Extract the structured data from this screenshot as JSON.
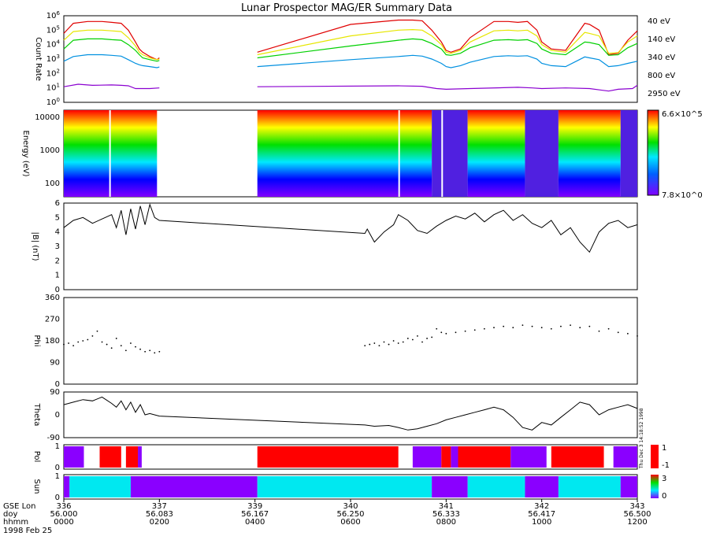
{
  "title": "Lunar Prospector MAG/ER Summary Data",
  "colors": {
    "e40": "#e00000",
    "e140": "#e6e600",
    "e340": "#00d000",
    "e800": "#0090e0",
    "e2950": "#8a00d0",
    "pol_pos": "#ff0000",
    "pol_neg": "#8a00ff",
    "sun_lit": "#00e8f0",
    "sun_dark": "#8a00ff"
  },
  "chart_data": [
    {
      "type": "line",
      "panel": "count-rate",
      "ylabel": "Count Rate",
      "yscale": "log",
      "ylim": [
        1,
        1000000
      ],
      "yticks": [
        "10^0",
        "10^1",
        "10^2",
        "10^3",
        "10^4",
        "10^5",
        "10^6"
      ],
      "xlim": [
        0,
        12
      ],
      "series": [
        {
          "name": "40 eV",
          "color_key": "e40",
          "x": [
            0,
            0.2,
            0.5,
            0.8,
            1.0,
            1.2,
            1.35,
            1.5,
            1.58,
            1.65,
            1.8,
            1.95,
            2.0,
            4.0,
            4.05,
            6.0,
            7.0,
            7.3,
            7.5,
            7.7,
            7.9,
            8.0,
            8.1,
            8.3,
            8.5,
            9.0,
            9.3,
            9.5,
            9.7,
            9.9,
            10.0,
            10.2,
            10.5,
            10.9,
            11.0,
            11.2,
            11.4,
            11.6,
            11.8,
            12.0
          ],
          "y": [
            60000,
            300000,
            400000,
            400000,
            350000,
            300000,
            100000,
            15000,
            5000,
            3000,
            1500,
            900,
            1200,
            null,
            3000,
            250000,
            500000,
            500000,
            450000,
            100000,
            15000,
            4000,
            3000,
            5000,
            30000,
            400000,
            400000,
            350000,
            400000,
            100000,
            15000,
            5000,
            4000,
            300000,
            250000,
            100000,
            2000,
            2500,
            20000,
            90000
          ]
        },
        {
          "name": "140 eV",
          "color_key": "e140",
          "x": [
            0,
            0.2,
            0.5,
            0.8,
            1.0,
            1.2,
            1.35,
            1.5,
            1.58,
            1.65,
            1.8,
            1.95,
            2.0,
            4.0,
            4.05,
            6.0,
            7.0,
            7.3,
            7.5,
            7.7,
            7.9,
            8.0,
            8.1,
            8.3,
            8.5,
            9.0,
            9.3,
            9.5,
            9.7,
            9.9,
            10.0,
            10.2,
            10.5,
            10.9,
            11.0,
            11.2,
            11.4,
            11.6,
            11.8,
            12.0
          ],
          "y": [
            20000,
            80000,
            100000,
            100000,
            90000,
            80000,
            30000,
            8000,
            3000,
            2000,
            1200,
            900,
            1000,
            null,
            2000,
            40000,
            100000,
            110000,
            100000,
            40000,
            10000,
            3000,
            2500,
            4000,
            15000,
            90000,
            100000,
            90000,
            100000,
            40000,
            10000,
            4000,
            3000,
            70000,
            60000,
            40000,
            2500,
            2800,
            15000,
            40000
          ]
        },
        {
          "name": "340 eV",
          "color_key": "e340",
          "x": [
            0,
            0.2,
            0.5,
            0.8,
            1.0,
            1.2,
            1.35,
            1.5,
            1.58,
            1.65,
            1.8,
            1.95,
            2.0,
            4.0,
            4.05,
            6.0,
            7.0,
            7.3,
            7.5,
            7.7,
            7.9,
            8.0,
            8.1,
            8.3,
            8.5,
            9.0,
            9.3,
            9.5,
            9.7,
            9.9,
            10.0,
            10.2,
            10.5,
            10.9,
            11.0,
            11.2,
            11.4,
            11.6,
            11.8,
            12.0
          ],
          "y": [
            5000,
            20000,
            25000,
            25000,
            22000,
            20000,
            10000,
            4000,
            2000,
            1200,
            900,
            700,
            800,
            null,
            1200,
            8000,
            20000,
            25000,
            22000,
            12000,
            5000,
            2000,
            1800,
            2500,
            6000,
            20000,
            22000,
            20000,
            22000,
            12000,
            5000,
            2500,
            2000,
            15000,
            14000,
            10000,
            1800,
            2000,
            6000,
            12000
          ]
        },
        {
          "name": "800 eV",
          "color_key": "e800",
          "x": [
            0,
            0.2,
            0.5,
            0.8,
            1.0,
            1.2,
            1.35,
            1.5,
            1.58,
            1.65,
            1.8,
            1.95,
            2.0,
            4.0,
            4.05,
            6.0,
            7.0,
            7.3,
            7.5,
            7.7,
            7.9,
            8.0,
            8.1,
            8.3,
            8.5,
            9.0,
            9.3,
            9.5,
            9.7,
            9.9,
            10.0,
            10.2,
            10.5,
            10.9,
            11.0,
            11.2,
            11.4,
            11.6,
            11.8,
            12.0
          ],
          "y": [
            700,
            1500,
            2000,
            2000,
            1800,
            1600,
            900,
            500,
            400,
            350,
            300,
            250,
            280,
            null,
            300,
            900,
            1500,
            1800,
            1600,
            1000,
            500,
            300,
            250,
            350,
            600,
            1500,
            1700,
            1600,
            1700,
            1000,
            500,
            350,
            300,
            1400,
            1200,
            900,
            300,
            350,
            500,
            700
          ]
        },
        {
          "name": "2950 eV",
          "color_key": "e2950",
          "x": [
            0,
            0.3,
            0.6,
            1.0,
            1.2,
            1.35,
            1.5,
            1.8,
            2.0,
            4.0,
            4.05,
            7.0,
            7.5,
            7.8,
            8.0,
            8.5,
            9.5,
            9.8,
            10.0,
            10.5,
            11.0,
            11.4,
            11.6,
            11.9,
            12.0
          ],
          "y": [
            12,
            18,
            15,
            16,
            15,
            14,
            9,
            9,
            10,
            null,
            12,
            14,
            13,
            9,
            8,
            9,
            11,
            10,
            9,
            10,
            9,
            6,
            8,
            9,
            15
          ]
        }
      ]
    },
    {
      "type": "heatmap",
      "panel": "energy-spectrogram",
      "ylabel": "Energy (eV)",
      "yticks": [
        "100",
        "1000",
        "10000"
      ],
      "colorbar_max": "6.6×10^5",
      "colorbar_min": "7.8×10^0"
    },
    {
      "type": "line",
      "panel": "b-magnitude",
      "ylabel": "|B| (nT)",
      "ylim": [
        0,
        6
      ],
      "yticks": [
        "0",
        "1",
        "2",
        "3",
        "4",
        "5",
        "6"
      ],
      "x": [
        0,
        0.2,
        0.4,
        0.6,
        0.8,
        1.0,
        1.1,
        1.2,
        1.3,
        1.4,
        1.5,
        1.6,
        1.7,
        1.8,
        1.9,
        2.0,
        6.3,
        6.35,
        6.5,
        6.7,
        6.9,
        7.0,
        7.2,
        7.4,
        7.6,
        7.8,
        8.0,
        8.2,
        8.4,
        8.6,
        8.8,
        9.0,
        9.2,
        9.4,
        9.6,
        9.8,
        10.0,
        10.2,
        10.4,
        10.6,
        10.8,
        11.0,
        11.2,
        11.4,
        11.6,
        11.8,
        12.0
      ],
      "y": [
        4.3,
        4.8,
        5.0,
        4.6,
        4.9,
        5.2,
        4.3,
        5.5,
        3.8,
        5.6,
        4.2,
        5.8,
        4.5,
        5.9,
        5.0,
        4.8,
        3.9,
        4.2,
        3.3,
        4.0,
        4.5,
        5.2,
        4.8,
        4.1,
        3.9,
        4.4,
        4.8,
        5.1,
        4.9,
        5.3,
        4.7,
        5.2,
        5.5,
        4.8,
        5.2,
        4.6,
        4.3,
        4.8,
        3.8,
        4.3,
        3.3,
        2.6,
        4.0,
        4.6,
        4.8,
        4.3,
        4.5
      ]
    },
    {
      "type": "scatter",
      "panel": "phi",
      "ylabel": "Phi",
      "ylim": [
        0,
        360
      ],
      "yticks": [
        "0",
        "90",
        "180",
        "270",
        "360"
      ],
      "x": [
        0,
        0.1,
        0.2,
        0.3,
        0.4,
        0.5,
        0.6,
        0.7,
        0.8,
        0.9,
        1.0,
        1.1,
        1.2,
        1.3,
        1.4,
        1.5,
        1.6,
        1.7,
        1.8,
        1.9,
        2.0,
        6.3,
        6.4,
        6.5,
        6.6,
        6.7,
        6.8,
        6.9,
        7.0,
        7.1,
        7.2,
        7.3,
        7.4,
        7.5,
        7.6,
        7.7,
        7.8,
        7.9,
        8.0,
        8.2,
        8.4,
        8.6,
        8.8,
        9.0,
        9.2,
        9.4,
        9.6,
        9.8,
        10.0,
        10.2,
        10.4,
        10.6,
        10.8,
        11.0,
        11.2,
        11.4,
        11.6,
        11.8,
        12.0
      ],
      "y": [
        165,
        170,
        160,
        175,
        180,
        185,
        200,
        220,
        175,
        165,
        150,
        190,
        160,
        140,
        170,
        155,
        145,
        135,
        140,
        130,
        135,
        160,
        165,
        170,
        160,
        175,
        165,
        180,
        170,
        175,
        190,
        185,
        200,
        175,
        190,
        195,
        230,
        215,
        210,
        215,
        220,
        225,
        230,
        235,
        240,
        235,
        245,
        240,
        235,
        230,
        240,
        245,
        235,
        240,
        220,
        230,
        215,
        210,
        200
      ]
    },
    {
      "type": "line",
      "panel": "theta",
      "ylabel": "Theta",
      "ylim": [
        -90,
        90
      ],
      "yticks": [
        "-90",
        "0",
        "90"
      ],
      "x": [
        0,
        0.2,
        0.4,
        0.6,
        0.8,
        1.0,
        1.1,
        1.2,
        1.3,
        1.4,
        1.5,
        1.6,
        1.7,
        1.8,
        2.0,
        6.3,
        6.5,
        6.8,
        7.0,
        7.2,
        7.4,
        7.6,
        7.8,
        8.0,
        8.2,
        8.4,
        8.6,
        8.8,
        9.0,
        9.2,
        9.4,
        9.6,
        9.8,
        10.0,
        10.2,
        10.4,
        10.6,
        10.8,
        11.0,
        11.2,
        11.4,
        11.6,
        11.8,
        12.0
      ],
      "y": [
        40,
        50,
        60,
        55,
        70,
        45,
        30,
        55,
        20,
        50,
        10,
        40,
        0,
        5,
        -5,
        -40,
        -45,
        -42,
        -50,
        -60,
        -55,
        -45,
        -35,
        -20,
        -10,
        0,
        10,
        20,
        30,
        20,
        -10,
        -50,
        -60,
        -30,
        -40,
        -10,
        20,
        50,
        40,
        0,
        20,
        30,
        40,
        25
      ]
    },
    {
      "type": "table",
      "panel": "pol",
      "ylabel": "Pol",
      "yticks": [
        "0",
        "1"
      ],
      "colorbar": [
        "1",
        "-1"
      ],
      "segments": [
        {
          "start": 0.0,
          "end": 0.42,
          "value": -1
        },
        {
          "start": 0.42,
          "end": 0.75,
          "value": null
        },
        {
          "start": 0.75,
          "end": 1.2,
          "value": 1
        },
        {
          "start": 1.2,
          "end": 1.3,
          "value": null
        },
        {
          "start": 1.3,
          "end": 1.55,
          "value": 1
        },
        {
          "start": 1.55,
          "end": 1.63,
          "value": -1
        },
        {
          "start": 1.63,
          "end": 4.05,
          "value": null
        },
        {
          "start": 4.05,
          "end": 7.0,
          "value": 1
        },
        {
          "start": 7.0,
          "end": 7.3,
          "value": null
        },
        {
          "start": 7.3,
          "end": 7.9,
          "value": -1
        },
        {
          "start": 7.9,
          "end": 8.1,
          "value": 1
        },
        {
          "start": 8.1,
          "end": 8.25,
          "value": -1
        },
        {
          "start": 8.25,
          "end": 9.35,
          "value": 1
        },
        {
          "start": 9.35,
          "end": 10.1,
          "value": -1
        },
        {
          "start": 10.1,
          "end": 10.2,
          "value": null
        },
        {
          "start": 10.2,
          "end": 11.3,
          "value": 1
        },
        {
          "start": 11.3,
          "end": 11.5,
          "value": null
        },
        {
          "start": 11.5,
          "end": 12.0,
          "value": -1
        }
      ]
    },
    {
      "type": "table",
      "panel": "sun",
      "ylabel": "Sun",
      "yticks": [
        "0",
        "1"
      ],
      "colorbar": [
        "3",
        "0"
      ],
      "side_text": "Thu Dec 3 14:18:52 1998",
      "segments": [
        {
          "start": 0.0,
          "end": 0.12,
          "value": 0
        },
        {
          "start": 0.12,
          "end": 1.4,
          "value": 1
        },
        {
          "start": 1.4,
          "end": 4.05,
          "value": 0
        },
        {
          "start": 4.05,
          "end": 7.7,
          "value": 1
        },
        {
          "start": 7.7,
          "end": 8.45,
          "value": 0
        },
        {
          "start": 8.45,
          "end": 9.65,
          "value": 1
        },
        {
          "start": 9.65,
          "end": 10.35,
          "value": 0
        },
        {
          "start": 10.35,
          "end": 11.65,
          "value": 1
        },
        {
          "start": 11.65,
          "end": 12.0,
          "value": 0
        }
      ]
    }
  ],
  "x_axis": {
    "row_labels": [
      "GSE Lon",
      "doy",
      "hhmm",
      "1998 Feb 25"
    ],
    "ticks": [
      {
        "lon": "336",
        "doy": "56.000",
        "hhmm": "0000"
      },
      {
        "lon": "337",
        "doy": "56.083",
        "hhmm": "0200"
      },
      {
        "lon": "339",
        "doy": "56.167",
        "hhmm": "0400"
      },
      {
        "lon": "340",
        "doy": "56.250",
        "hhmm": "0600"
      },
      {
        "lon": "341",
        "doy": "56.333",
        "hhmm": "0800"
      },
      {
        "lon": "342",
        "doy": "56.417",
        "hhmm": "1000"
      },
      {
        "lon": "343",
        "doy": "56.500",
        "hhmm": "1200"
      }
    ]
  }
}
